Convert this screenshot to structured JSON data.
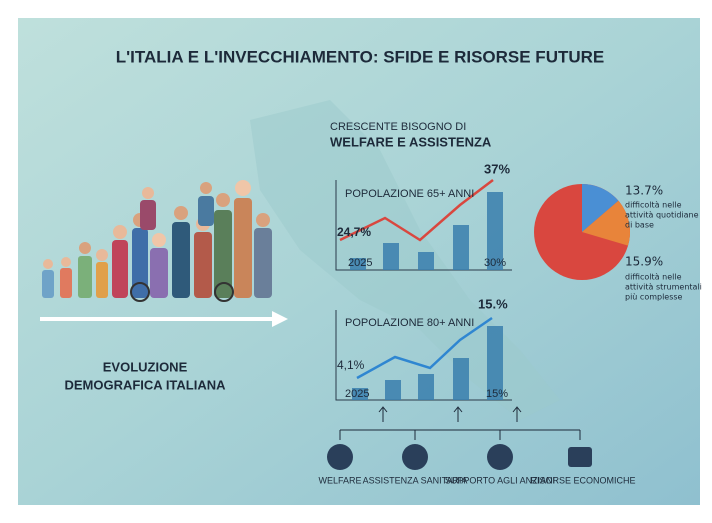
{
  "title": "L'ITALIA E L'INVECCHIAMENTO: SFIDE E RISORSE FUTURE",
  "left": {
    "label_lines": [
      "EVOLUZIONE",
      "DEMOGRAFICA ITALIANA"
    ]
  },
  "section": {
    "kicker": "CRESCENTE BISOGNO DI",
    "heading": "WELFARE E ASSISTENZA"
  },
  "charts": [
    {
      "title": "POPOLAZIONE 65+ ANNI",
      "start_label": "24,7%",
      "end_label": "37%",
      "year": "2025",
      "bar_label": "30%",
      "color": "#d9473f"
    },
    {
      "title": "POPOLAZIONE 80+ ANNI",
      "start_label": "4,1%",
      "end_label": "15.%",
      "year": "2025",
      "bar_label": "15%",
      "color": "#2f86d1"
    }
  ],
  "pie": {
    "slices": [
      {
        "value": 13.7,
        "label": "13.7%",
        "desc": [
          "difficoltà nelle",
          "attività quotidiane",
          "di base"
        ],
        "color": "#4a8fd4"
      },
      {
        "value": 15.9,
        "label": "15.9%",
        "desc": [
          "difficoltà nelle",
          "attività strumentali",
          "più complesse"
        ],
        "color": "#e8843a"
      }
    ],
    "base_color": "#d9473f"
  },
  "icons": [
    "WELFARE",
    "ASSISTENZA SANITARIA",
    "SUPPORTO AGLI ANZIANI",
    "RISORSE ECONOMICHE"
  ]
}
